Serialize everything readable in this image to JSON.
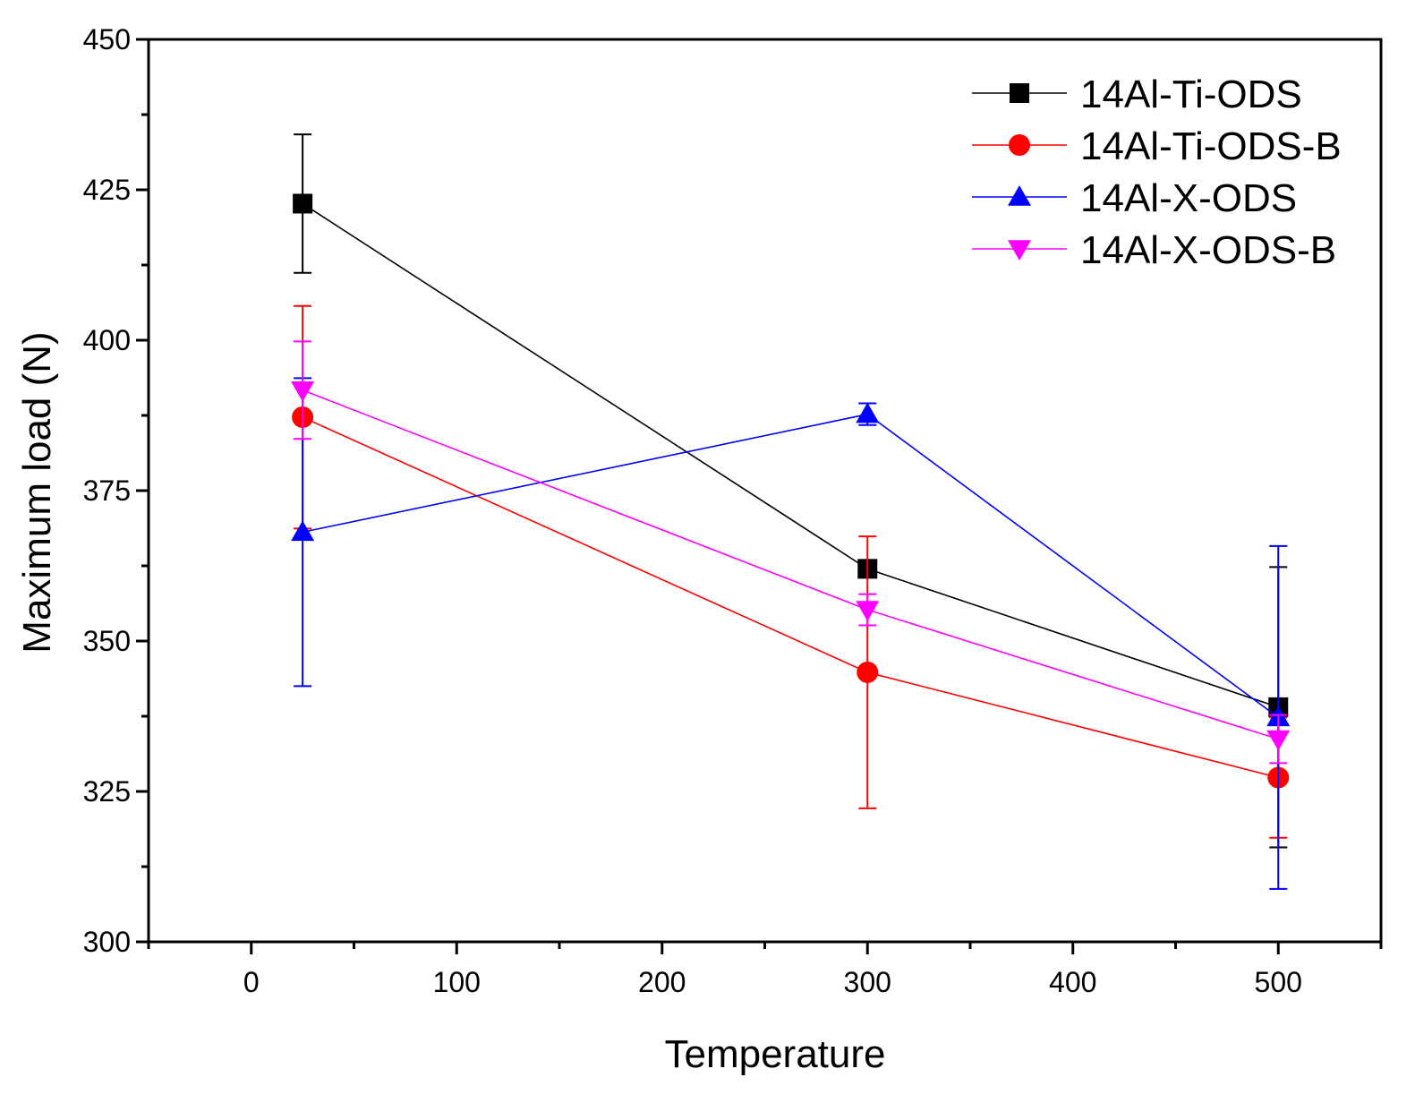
{
  "chart_data": {
    "type": "line",
    "title": "",
    "xlabel": "Temperature",
    "ylabel": "Maximum load (N)",
    "xlim": [
      -50,
      550
    ],
    "ylim": [
      300,
      450
    ],
    "xticks": [
      0,
      100,
      200,
      300,
      400,
      500
    ],
    "yticks": [
      300,
      325,
      350,
      375,
      400,
      425,
      450
    ],
    "legend_position": "top-right",
    "series": [
      {
        "name": "14Al-Ti-ODS",
        "color": "#000000",
        "marker": "square",
        "x": [
          25,
          300,
          500
        ],
        "y": [
          422.7,
          362.0,
          339.0
        ],
        "err": [
          11.5,
          0.6,
          23.3
        ]
      },
      {
        "name": "14Al-Ti-ODS-B",
        "color": "#ff0000",
        "marker": "circle",
        "x": [
          25,
          300,
          500
        ],
        "y": [
          387.2,
          344.8,
          327.3
        ],
        "err": [
          18.5,
          22.6,
          10.0
        ]
      },
      {
        "name": "14Al-X-ODS",
        "color": "#0000ff",
        "marker": "triangle-up",
        "x": [
          25,
          300,
          500
        ],
        "y": [
          368.1,
          387.7,
          337.3
        ],
        "err": [
          25.6,
          1.8,
          28.5
        ]
      },
      {
        "name": "14Al-X-ODS-B",
        "color": "#ff00ff",
        "marker": "triangle-down",
        "x": [
          25,
          300,
          500
        ],
        "y": [
          391.7,
          355.2,
          333.7
        ],
        "err": [
          8.1,
          2.6,
          4.0
        ]
      }
    ]
  }
}
